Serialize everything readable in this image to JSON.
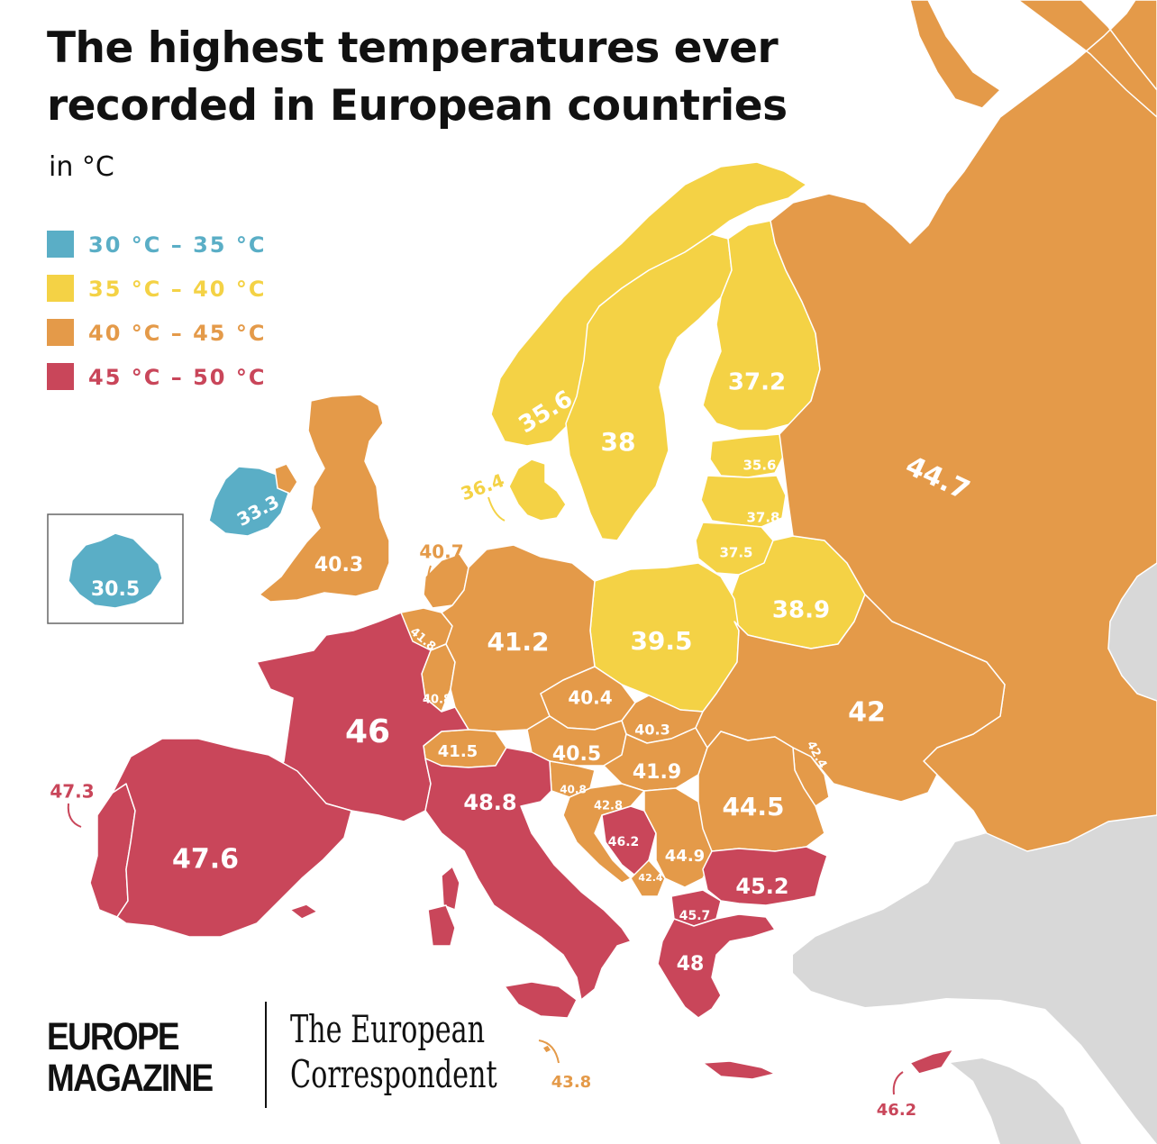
{
  "title_line1": "The highest temperatures ever",
  "title_line2": "recorded in European countries",
  "subtitle": "in °C",
  "colors": {
    "blue": "#5aaec6",
    "yellow": "#f4d245",
    "orange": "#e49a49",
    "red": "#c9465a",
    "grey": "#d8d8d8",
    "border": "#ffffff"
  },
  "legend": [
    {
      "label": "30 °C – 35 °C",
      "color": "#5aaec6"
    },
    {
      "label": "35 °C – 40 °C",
      "color": "#f4d245"
    },
    {
      "label": "40 °C – 45 °C",
      "color": "#e49a49"
    },
    {
      "label": "45 °C – 50 °C",
      "color": "#c9465a"
    }
  ],
  "countries": [
    {
      "name": "Iceland",
      "value": "30.5",
      "category": "blue"
    },
    {
      "name": "Ireland",
      "value": "33.3",
      "category": "blue"
    },
    {
      "name": "United Kingdom",
      "value": "40.3",
      "category": "orange"
    },
    {
      "name": "Norway",
      "value": "35.6",
      "category": "yellow"
    },
    {
      "name": "Sweden",
      "value": "38",
      "category": "yellow"
    },
    {
      "name": "Finland",
      "value": "37.2",
      "category": "yellow"
    },
    {
      "name": "Denmark",
      "value": "36.4",
      "category": "yellow"
    },
    {
      "name": "Estonia",
      "value": "35.6",
      "category": "yellow"
    },
    {
      "name": "Latvia",
      "value": "37.8",
      "category": "yellow"
    },
    {
      "name": "Lithuania",
      "value": "37.5",
      "category": "yellow"
    },
    {
      "name": "Belarus",
      "value": "38.9",
      "category": "yellow"
    },
    {
      "name": "Poland",
      "value": "39.5",
      "category": "yellow"
    },
    {
      "name": "Russia",
      "value": "44.7",
      "category": "orange"
    },
    {
      "name": "Netherlands",
      "value": "40.7",
      "category": "orange"
    },
    {
      "name": "Belgium",
      "value": "41.8",
      "category": "orange"
    },
    {
      "name": "Luxembourg",
      "value": "40.8",
      "category": "orange"
    },
    {
      "name": "Germany",
      "value": "41.2",
      "category": "orange"
    },
    {
      "name": "Czechia",
      "value": "40.4",
      "category": "orange"
    },
    {
      "name": "Slovakia",
      "value": "40.3",
      "category": "orange"
    },
    {
      "name": "Austria",
      "value": "40.5",
      "category": "orange"
    },
    {
      "name": "Switzerland",
      "value": "41.5",
      "category": "orange"
    },
    {
      "name": "Hungary",
      "value": "41.9",
      "category": "orange"
    },
    {
      "name": "Slovenia",
      "value": "40.8",
      "category": "orange"
    },
    {
      "name": "Croatia",
      "value": "42.8",
      "category": "orange"
    },
    {
      "name": "Ukraine",
      "value": "42",
      "category": "orange"
    },
    {
      "name": "Moldova",
      "value": "42.4",
      "category": "orange"
    },
    {
      "name": "Romania",
      "value": "44.5",
      "category": "orange"
    },
    {
      "name": "Serbia",
      "value": "44.9",
      "category": "orange"
    },
    {
      "name": "Montenegro",
      "value": "42.4",
      "category": "orange"
    },
    {
      "name": "Malta",
      "value": "43.8",
      "category": "orange"
    },
    {
      "name": "France",
      "value": "46",
      "category": "red"
    },
    {
      "name": "Spain",
      "value": "47.6",
      "category": "red"
    },
    {
      "name": "Portugal",
      "value": "47.3",
      "category": "red"
    },
    {
      "name": "Italy",
      "value": "48.8",
      "category": "red"
    },
    {
      "name": "Bosnia and Herzegovina",
      "value": "46.2",
      "category": "red"
    },
    {
      "name": "Bulgaria",
      "value": "45.2",
      "category": "red"
    },
    {
      "name": "North Macedonia",
      "value": "45.7",
      "category": "red"
    },
    {
      "name": "Greece",
      "value": "48",
      "category": "red"
    },
    {
      "name": "Cyprus",
      "value": "46.2",
      "category": "red"
    }
  ],
  "brand_left_line1": "EUROPE",
  "brand_left_line2": "MAGAZINE",
  "brand_right_line1": "The European",
  "brand_right_line2": "Correspondent"
}
